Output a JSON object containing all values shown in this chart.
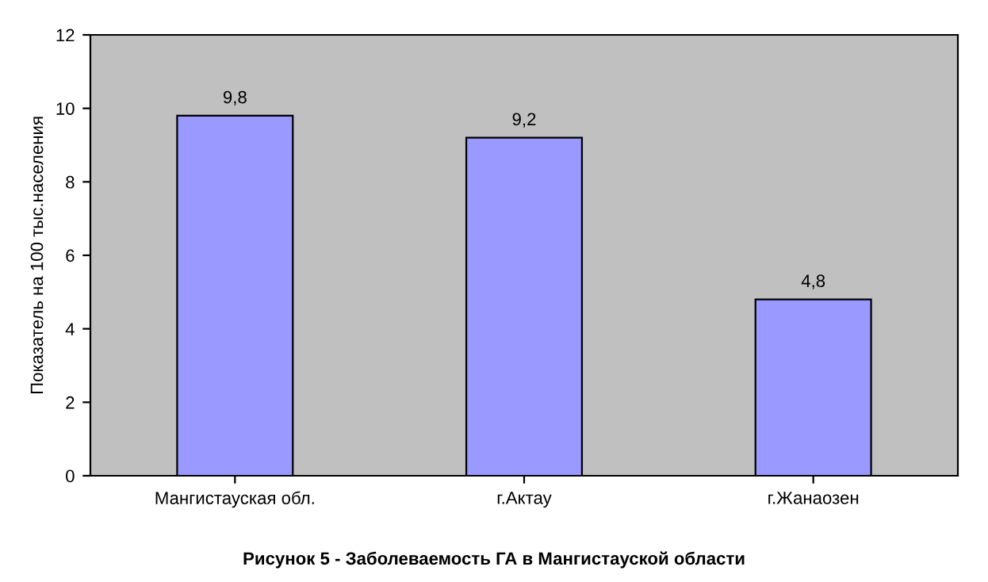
{
  "chart_data": {
    "type": "bar",
    "title": "Рисунок 5 - Заболеваемость ГА в Мангистауской области",
    "ylabel": "Показатель на 100 тыс.населения",
    "categories": [
      "Мангистауская обл.",
      "г.Актау",
      "г.Жанаозен"
    ],
    "values": [
      9.8,
      9.2,
      4.8
    ],
    "value_labels": [
      "9,8",
      "9,2",
      "4,8"
    ],
    "color": "#9999ff",
    "ylim": [
      0,
      12
    ],
    "yticks": [
      0,
      2,
      4,
      6,
      8,
      10,
      12
    ],
    "grid": false,
    "legend": false
  }
}
